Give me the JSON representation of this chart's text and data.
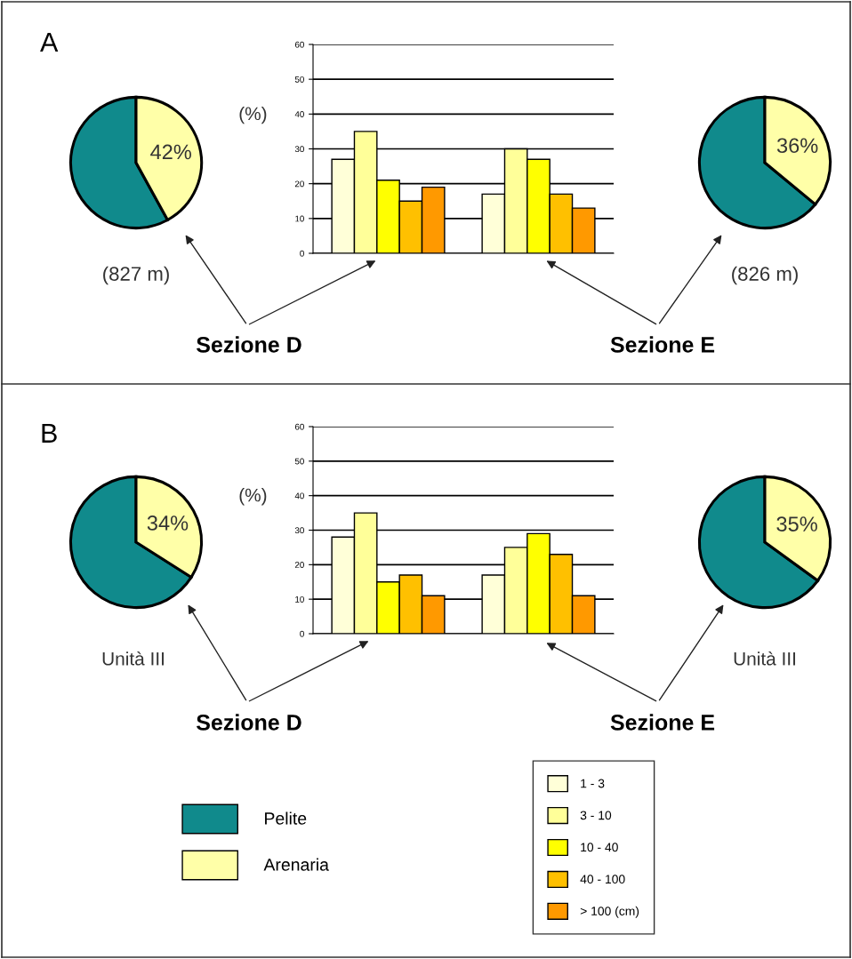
{
  "chart_data": [
    {
      "type": "pie",
      "categories": [
        "Pelite",
        "Arenaria"
      ],
      "values": [
        58,
        42
      ],
      "colors": [
        "#108a8c",
        "#ffffa8"
      ],
      "value_labels": [
        null,
        "42%"
      ],
      "annotations": [
        "A",
        "(827 m)",
        "Sezione D"
      ],
      "legend": "bottom"
    },
    {
      "type": "bar",
      "categories": [
        null,
        null
      ],
      "ylabel": "(%)",
      "ylim": [
        0,
        60
      ],
      "yticks": [
        0,
        10,
        20,
        30,
        40,
        50,
        60
      ],
      "grid": "y",
      "legend": "bottom",
      "series": [
        {
          "name": "1 - 3",
          "color": "#ffffd8",
          "values": [
            27,
            17
          ]
        },
        {
          "name": "3 - 10",
          "color": "#ffff99",
          "values": [
            35,
            30
          ]
        },
        {
          "name": "10 - 40",
          "color": "#ffff00",
          "values": [
            21,
            27
          ]
        },
        {
          "name": "40 - 100",
          "color": "#ffc000",
          "values": [
            15,
            17
          ]
        },
        {
          "name": "> 100 (cm)",
          "color": "#ff9900",
          "values": [
            19,
            13
          ]
        }
      ]
    },
    {
      "type": "pie",
      "categories": [
        null,
        null
      ],
      "values": [
        64,
        36
      ],
      "colors": [
        "#108a8c",
        "#ffffa8"
      ],
      "value_labels": [
        null,
        "36%"
      ],
      "annotations": [
        "(826 m)",
        "Sezione E"
      ]
    },
    {
      "type": "pie",
      "categories": [
        null,
        null
      ],
      "values": [
        66,
        34
      ],
      "colors": [
        "#108a8c",
        "#ffffa8"
      ],
      "value_labels": [
        null,
        "34%"
      ],
      "annotations": [
        "B",
        "Unità III",
        "Sezione D"
      ]
    },
    {
      "type": "bar",
      "categories": [
        null,
        null
      ],
      "ylabel": "(%)",
      "ylim": [
        0,
        60
      ],
      "yticks": [
        0,
        10,
        20,
        30,
        40,
        50,
        60
      ],
      "grid": "y",
      "series": [
        {
          "color": "#ffffd8",
          "values": [
            28,
            17
          ]
        },
        {
          "color": "#ffff99",
          "values": [
            35,
            25
          ]
        },
        {
          "color": "#ffff00",
          "values": [
            15,
            29
          ]
        },
        {
          "color": "#ffc000",
          "values": [
            17,
            23
          ]
        },
        {
          "color": "#ff9900",
          "values": [
            11,
            11
          ]
        }
      ]
    },
    {
      "type": "pie",
      "categories": [
        null,
        null
      ],
      "values": [
        65,
        35
      ],
      "colors": [
        "#108a8c",
        "#ffffa8"
      ],
      "value_labels": [
        null,
        "35%"
      ],
      "annotations": [
        "Unità III",
        "Sezione E"
      ]
    }
  ]
}
